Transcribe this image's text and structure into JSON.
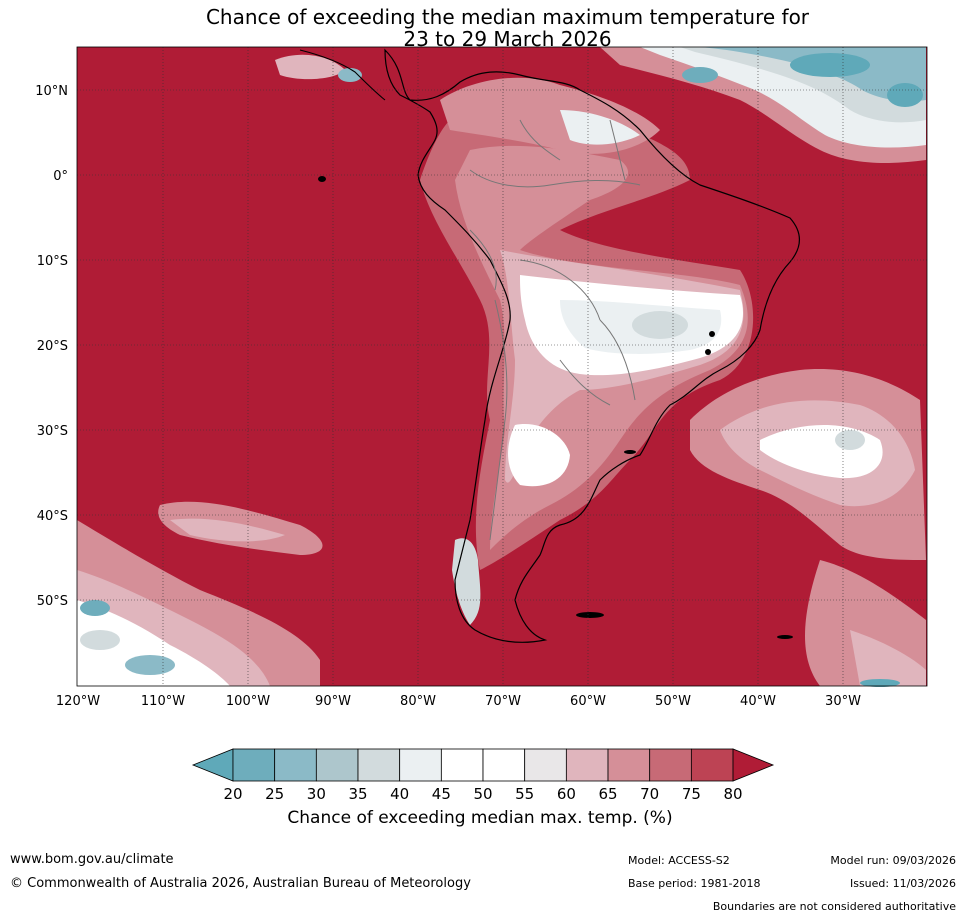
{
  "title": {
    "line1": "Chance of exceeding the median maximum temperature for",
    "line2": "23 to 29 March 2026"
  },
  "map": {
    "latitude_labels": [
      "10°N",
      "0°",
      "10°S",
      "20°S",
      "30°S",
      "40°S",
      "50°S"
    ],
    "latitude_values": [
      10,
      0,
      -10,
      -20,
      -30,
      -40,
      -50
    ],
    "longitude_labels": [
      "120°W",
      "110°W",
      "100°W",
      "90°W",
      "80°W",
      "70°W",
      "60°W",
      "50°W",
      "40°W",
      "30°W"
    ],
    "longitude_values": [
      -120,
      -110,
      -100,
      -90,
      -80,
      -70,
      -60,
      -50,
      -40,
      -30
    ],
    "extent": {
      "lon_min": -120,
      "lon_max": -20.5,
      "lat_min": -60,
      "lat_max": 15
    }
  },
  "colorbar": {
    "ticks": [
      "20",
      "25",
      "30",
      "35",
      "40",
      "45",
      "50",
      "55",
      "60",
      "65",
      "70",
      "75",
      "80"
    ],
    "colors": [
      "#5fa9b9",
      "#6eadbc",
      "#8bbac7",
      "#adc6cc",
      "#d2dbdd",
      "#ebf0f2",
      "#ffffff",
      "#ffffff",
      "#e9e7e8",
      "#e0b5bd",
      "#d58f98",
      "#c76a76",
      "#bd4354",
      "#b01c36"
    ],
    "label": "Chance of exceeding median max. temp. (%)"
  },
  "footer": {
    "website": "www.bom.gov.au/climate",
    "copyright": "© Commonwealth of Australia 2026, Australian Bureau of Meteorology",
    "model": "Model: ACCESS-S2",
    "model_run": "Model run: 09/03/2026",
    "base_period": "Base period: 1981-2018",
    "issued": "Issued: 11/03/2026",
    "disclaimer": "Boundaries are not considered authoritative"
  }
}
